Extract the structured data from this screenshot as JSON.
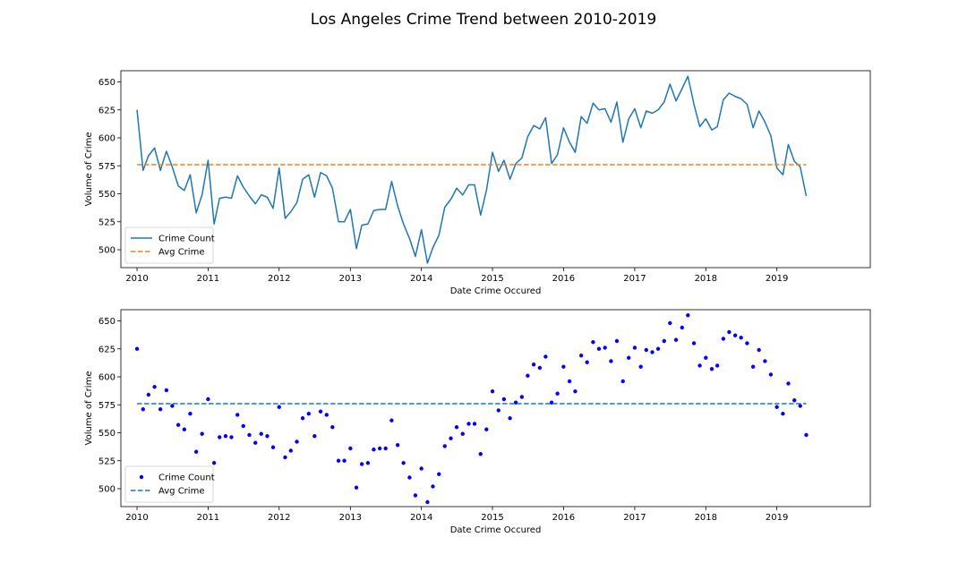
{
  "figure": {
    "title": "Los Angeles Crime Trend between 2010-2019"
  },
  "chart_data": [
    {
      "type": "line",
      "xlabel": "Date Crime Occured",
      "ylabel": "Volume of Crime",
      "xlim": [
        "2009-10-10",
        "2020-04-25"
      ],
      "ylim": [
        484,
        660
      ],
      "x_ticks": [
        "2010",
        "2011",
        "2012",
        "2013",
        "2014",
        "2015",
        "2016",
        "2017",
        "2018",
        "2019"
      ],
      "y_ticks": [
        500,
        525,
        550,
        575,
        600,
        625,
        650
      ],
      "legend": {
        "position": "lower-left",
        "entries": [
          "Crime Count",
          "Avg Crime"
        ]
      },
      "series": [
        {
          "name": "Crime Count",
          "style": "solid-line",
          "color": "#1f77b4",
          "ref": "monthly"
        },
        {
          "name": "Avg Crime",
          "style": "dashed-line",
          "color": "#ff7f0e",
          "ref": "average"
        }
      ]
    },
    {
      "type": "scatter",
      "xlabel": "Date Crime Occured",
      "ylabel": "Volume of Crime",
      "xlim": [
        "2009-10-10",
        "2020-04-25"
      ],
      "ylim": [
        484,
        660
      ],
      "x_ticks": [
        "2010",
        "2011",
        "2012",
        "2013",
        "2014",
        "2015",
        "2016",
        "2017",
        "2018",
        "2019"
      ],
      "y_ticks": [
        500,
        525,
        550,
        575,
        600,
        625,
        650
      ],
      "legend": {
        "position": "lower-left",
        "entries": [
          "Crime Count",
          "Avg Crime"
        ]
      },
      "series": [
        {
          "name": "Crime Count",
          "style": "dots",
          "color": "#0000ff",
          "ref": "monthly"
        },
        {
          "name": "Avg Crime",
          "style": "dashed-line",
          "color": "#1f77b4",
          "ref": "average"
        }
      ]
    }
  ],
  "data": {
    "start_month": "2010-01",
    "average": 576,
    "monthly": [
      625,
      571,
      584,
      591,
      571,
      588,
      574,
      557,
      553,
      567,
      533,
      549,
      580,
      523,
      546,
      547,
      546,
      566,
      556,
      548,
      541,
      549,
      547,
      537,
      573,
      528,
      534,
      542,
      563,
      567,
      547,
      569,
      566,
      555,
      525,
      525,
      536,
      501,
      522,
      523,
      535,
      536,
      536,
      561,
      539,
      523,
      510,
      494,
      518,
      488,
      502,
      513,
      538,
      545,
      555,
      549,
      558,
      558,
      531,
      553,
      587,
      570,
      580,
      563,
      577,
      582,
      601,
      611,
      608,
      618,
      577,
      585,
      609,
      596,
      587,
      619,
      613,
      631,
      625,
      626,
      614,
      632,
      596,
      617,
      626,
      609,
      624,
      622,
      625,
      632,
      648,
      633,
      644,
      655,
      630,
      610,
      617,
      607,
      610,
      634,
      640,
      637,
      635,
      630,
      609,
      624,
      614,
      602,
      573,
      567,
      594,
      579,
      574,
      548
    ]
  }
}
